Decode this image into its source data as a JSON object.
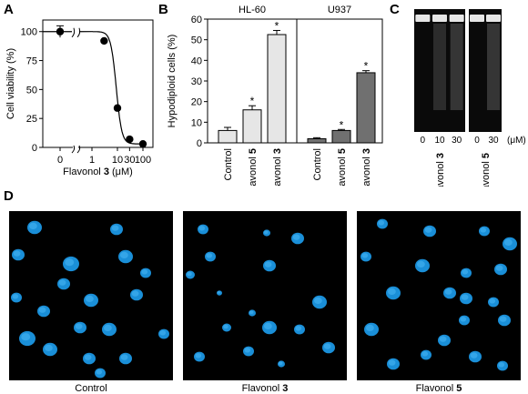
{
  "panels": {
    "A": {
      "letter": "A",
      "chart_data": {
        "type": "scatter",
        "xlabel_prefix": "Flavonol ",
        "xlabel_compound": "3",
        "xlabel_unit": " (μM)",
        "ylabel": "Cell viability (%)",
        "x_ticks": [
          "0",
          "1",
          "10",
          "30",
          "100"
        ],
        "y_ticks": [
          "0",
          "25",
          "50",
          "75",
          "100"
        ],
        "ylim": [
          0,
          110
        ],
        "x": [
          0,
          3,
          10,
          30,
          100
        ],
        "y": [
          100,
          92,
          34,
          7,
          3
        ],
        "error": [
          5,
          0,
          0,
          0,
          0
        ],
        "fit": "sigmoid"
      }
    },
    "B": {
      "letter": "B",
      "chart_data": {
        "type": "bar",
        "ylabel": "Hypodiploid cells (%)",
        "ylim": [
          0,
          60
        ],
        "y_ticks": [
          "0",
          "10",
          "20",
          "30",
          "40",
          "50",
          "60"
        ],
        "groups": [
          {
            "name": "HL-60",
            "categories": [
              {
                "prefix": "Control",
                "compound": ""
              },
              {
                "prefix": "Flavonol ",
                "compound": "5"
              },
              {
                "prefix": "Flavonol ",
                "compound": "3"
              }
            ],
            "values": [
              6,
              16,
              52.5
            ],
            "errors": [
              1.5,
              2,
              2
            ],
            "significant": [
              false,
              true,
              true
            ],
            "color": "#e6e6e6"
          },
          {
            "name": "U937",
            "categories": [
              {
                "prefix": "Control",
                "compound": ""
              },
              {
                "prefix": "Flavonol ",
                "compound": "5"
              },
              {
                "prefix": "Flavonol ",
                "compound": "3"
              }
            ],
            "values": [
              2,
              6,
              34
            ],
            "errors": [
              0.5,
              0.5,
              1
            ],
            "significant": [
              false,
              true,
              true
            ],
            "color": "#707070"
          }
        ],
        "significance_mark": "*"
      }
    },
    "C": {
      "letter": "C",
      "unit": "(μM)",
      "gels": [
        {
          "lanes": [
            "0",
            "10",
            "30"
          ],
          "label_prefix": "Flavonol ",
          "label_compound": "3"
        },
        {
          "lanes": [
            "0",
            "30"
          ],
          "label_prefix": "Flavonol ",
          "label_compound": "5"
        }
      ]
    },
    "D": {
      "letter": "D",
      "images": [
        {
          "label": "Control",
          "label_compound": ""
        },
        {
          "label": "Flavonol ",
          "label_compound": "3"
        },
        {
          "label": "Flavonol ",
          "label_compound": "5"
        }
      ]
    }
  },
  "colors": {
    "nucleus": "#1a8fd8",
    "nucleus_bright": "#4ab8f5",
    "bar_hl60": "#e6e6e6",
    "bar_u937": "#707070"
  }
}
